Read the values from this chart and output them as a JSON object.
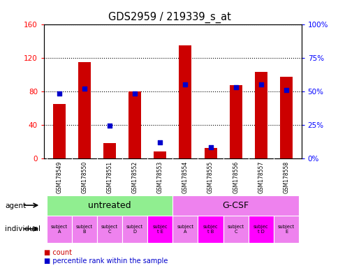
{
  "title": "GDS2959 / 219339_s_at",
  "samples": [
    "GSM178549",
    "GSM178550",
    "GSM178551",
    "GSM178552",
    "GSM178553",
    "GSM178554",
    "GSM178555",
    "GSM178556",
    "GSM178557",
    "GSM178558"
  ],
  "count_values": [
    65,
    115,
    18,
    80,
    8,
    135,
    12,
    87,
    103,
    97
  ],
  "percentile_values": [
    48,
    52,
    24,
    48,
    12,
    55,
    8,
    53,
    55,
    51
  ],
  "agent_groups": [
    {
      "label": "untreated",
      "start": 0,
      "end": 5,
      "color": "#90ee90"
    },
    {
      "label": "G-CSF",
      "start": 5,
      "end": 10,
      "color": "#ee82ee"
    }
  ],
  "individual_labels": [
    "subject\nA",
    "subject\nB",
    "subject\nC",
    "subject\nD",
    "subjec\nt E",
    "subject\nA",
    "subjec\nt B",
    "subject\nC",
    "subjec\nt D",
    "subject\nE"
  ],
  "individual_colors": [
    "#ee82ee",
    "#ee82ee",
    "#ee82ee",
    "#ee82ee",
    "#ff00ff",
    "#ee82ee",
    "#ff00ff",
    "#ee82ee",
    "#ff00ff",
    "#ee82ee"
  ],
  "ylim_left": [
    0,
    160
  ],
  "ylim_right": [
    0,
    100
  ],
  "yticks_left": [
    0,
    40,
    80,
    120,
    160
  ],
  "ytick_labels_left": [
    "0",
    "40",
    "80",
    "120",
    "160"
  ],
  "yticks_right": [
    0,
    25,
    50,
    75,
    100
  ],
  "ytick_labels_right": [
    "0%",
    "25%",
    "50%",
    "75%",
    "100%"
  ],
  "bar_color": "#cc0000",
  "dot_color": "#0000cc",
  "gsm_bg_color": "#d3d3d3",
  "bg_color": "#ffffff"
}
